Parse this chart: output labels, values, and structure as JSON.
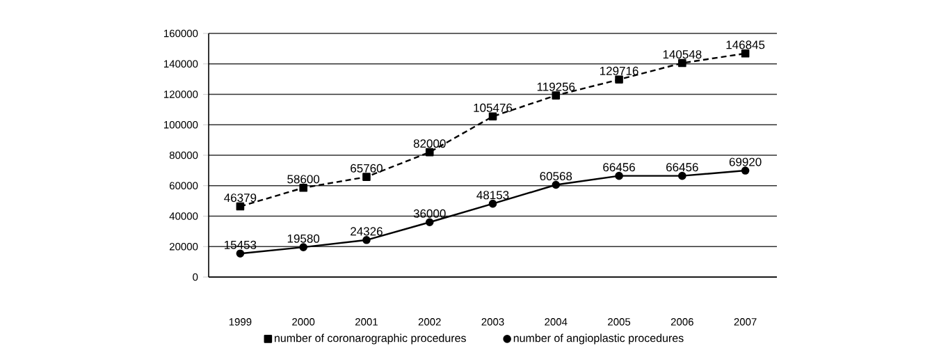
{
  "chart_data": {
    "type": "line",
    "categories": [
      "1999",
      "2000",
      "2001",
      "2002",
      "2003",
      "2004",
      "2005",
      "2006",
      "2007"
    ],
    "series": [
      {
        "name": "number of coronarographic procedures",
        "color": "#000000",
        "marker": "square",
        "line_style": "dashed",
        "values": [
          46379,
          58600,
          65760,
          82000,
          105476,
          119256,
          129716,
          140548,
          146845
        ]
      },
      {
        "name": "number of angioplastic procedures",
        "color": "#000000",
        "marker": "circle",
        "line_style": "solid",
        "values": [
          15453,
          19580,
          24326,
          36000,
          48153,
          60568,
          66456,
          66456,
          69920
        ]
      }
    ],
    "ylim": [
      0,
      160000
    ],
    "yticks": [
      0,
      20000,
      40000,
      60000,
      80000,
      100000,
      120000,
      140000,
      160000
    ],
    "grid": "y",
    "legend": "bottom",
    "data_labels": true
  }
}
